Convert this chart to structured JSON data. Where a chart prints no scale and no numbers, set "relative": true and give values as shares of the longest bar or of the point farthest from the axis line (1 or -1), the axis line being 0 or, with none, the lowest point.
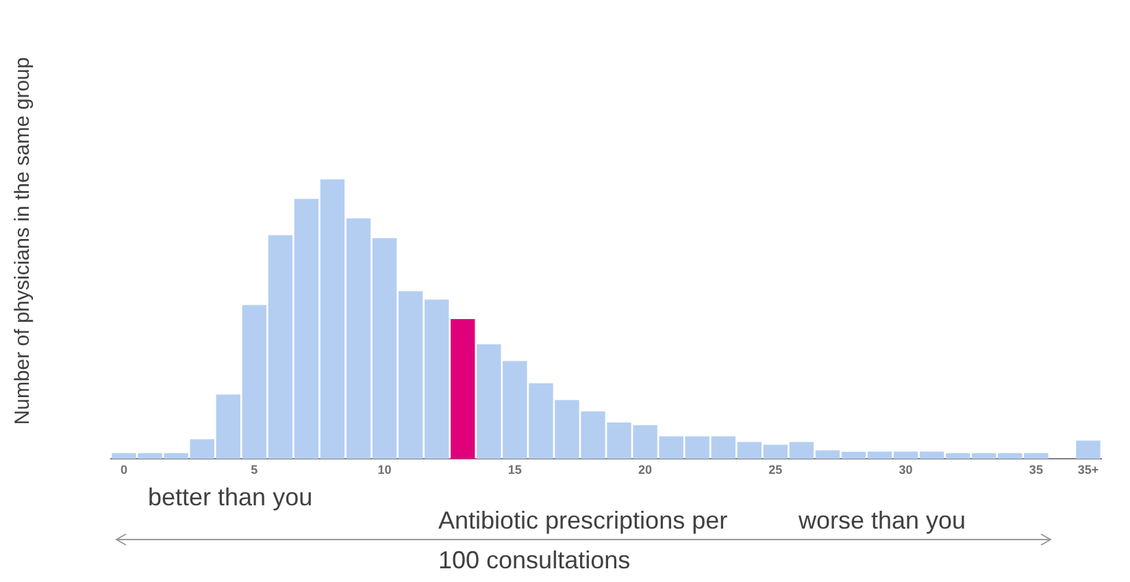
{
  "chart_data": {
    "type": "bar",
    "relative": true,
    "ylabel": "Number of physicians in the same group",
    "xlabel": "Antibiotic prescriptions per 100 consultations",
    "annotations": [
      "better than you",
      "worse than you"
    ],
    "categories": [
      "0",
      null,
      null,
      null,
      null,
      "5",
      null,
      null,
      null,
      null,
      "10",
      null,
      null,
      null,
      null,
      "15",
      null,
      null,
      null,
      null,
      "20",
      null,
      null,
      null,
      null,
      "25",
      null,
      null,
      null,
      null,
      "30",
      null,
      null,
      null,
      null,
      "35",
      null,
      "35+"
    ],
    "values": [
      0.02,
      0.02,
      0.02,
      0.07,
      0.23,
      0.55,
      0.8,
      0.93,
      1,
      0.86,
      0.79,
      0.6,
      0.57,
      0.5,
      0.41,
      0.35,
      0.27,
      0.21,
      0.17,
      0.13,
      0.12,
      0.08,
      0.08,
      0.08,
      0.06,
      0.05,
      0.06,
      0.03,
      0.025,
      0.026,
      0.026,
      0.026,
      0.02,
      0.02,
      0.02,
      0.02,
      null,
      0.065
    ],
    "colors": [
      "#b4cef2",
      "#b4cef2",
      "#b4cef2",
      "#b4cef2",
      "#b4cef2",
      "#b4cef2",
      "#b4cef2",
      "#b4cef2",
      "#b4cef2",
      "#b4cef2",
      "#b4cef2",
      "#b4cef2",
      "#b4cef2",
      "#e0007a",
      "#b4cef2",
      "#b4cef2",
      "#b4cef2",
      "#b4cef2",
      "#b4cef2",
      "#b4cef2",
      "#b4cef2",
      "#b4cef2",
      "#b4cef2",
      "#b4cef2",
      "#b4cef2",
      "#b4cef2",
      "#b4cef2",
      "#b4cef2",
      "#b4cef2",
      "#b4cef2",
      "#b4cef2",
      "#b4cef2",
      "#b4cef2",
      "#b4cef2",
      "#b4cef2",
      "#b4cef2",
      "#b4cef2",
      "#b4cef2"
    ],
    "legend": false
  }
}
